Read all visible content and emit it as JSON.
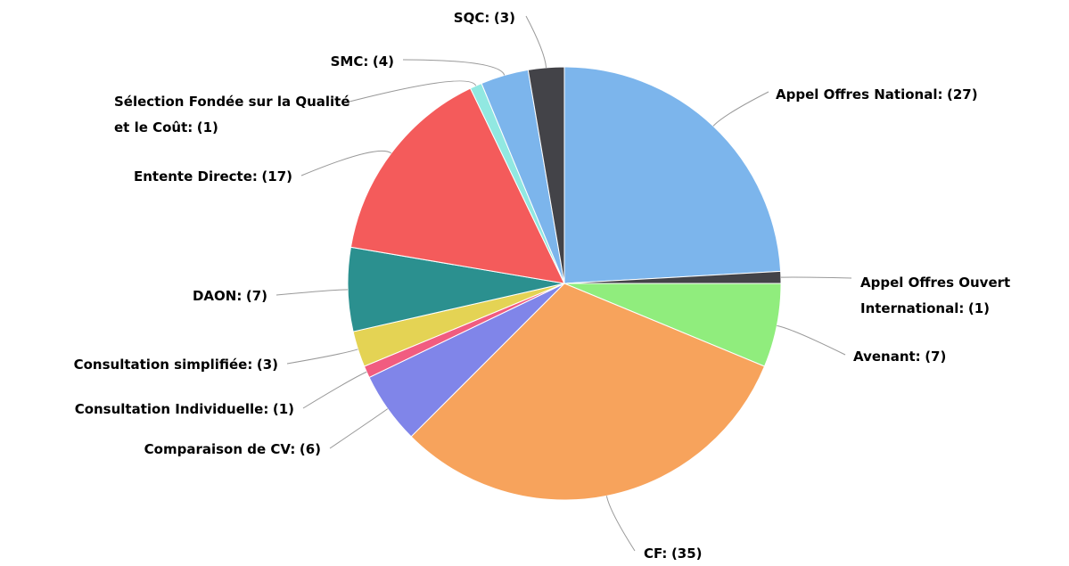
{
  "chart_data": {
    "type": "pie",
    "categories": [
      "Appel Offres National:",
      "Appel Offres Ouvert International:",
      "Avenant:",
      "CF:",
      "Comparaison de CV:",
      "Consultation Individuelle:",
      "Consultation simplifiée:",
      "DAON:",
      "Entente Directe:",
      "Sélection Fondée sur la Qualité et le Coût:",
      "SMC:",
      "SQC:"
    ],
    "values": [
      27,
      1,
      7,
      35,
      6,
      1,
      3,
      7,
      17,
      1,
      4,
      3
    ],
    "value_labels": [
      "(27)",
      "(1)",
      "(7)",
      "(35)",
      "(6)",
      "(1)",
      "(3)",
      "(7)",
      "(17)",
      "(1)",
      "(4)",
      "(3)"
    ],
    "colors": [
      "#7cb5ec",
      "#434348",
      "#90ed7d",
      "#f7a35c",
      "#8085e9",
      "#f15c80",
      "#e4d354",
      "#2b908f",
      "#f45b5b",
      "#91e8e1",
      "#7cb5ec",
      "#434348"
    ]
  }
}
